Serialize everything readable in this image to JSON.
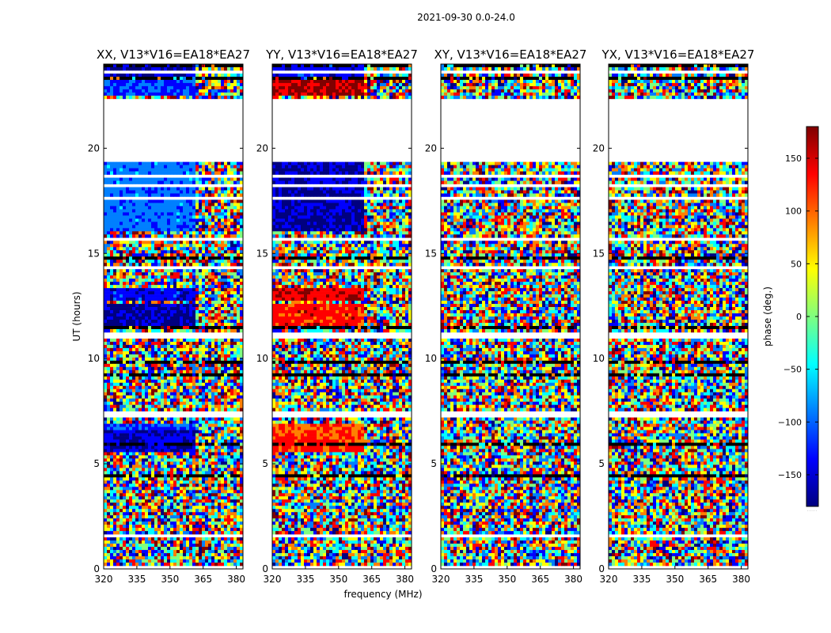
{
  "figure": {
    "suptitle": "2021-09-30 0.0-24.0",
    "xlabel": "frequency (MHz)",
    "ylabel": "UT (hours)",
    "colorbar_label": "phase (deg.)",
    "colorbar_extra": "· · · · ·"
  },
  "chart_data": {
    "type": "heatmap",
    "colormap": "jet",
    "colors": {
      "jet": [
        "#00007f",
        "#0000ff",
        "#007fff",
        "#00ffff",
        "#7fff7f",
        "#ffff00",
        "#ff7f00",
        "#ff0000",
        "#7f0000"
      ],
      "flag": "#ffffff",
      "axis": "#000000"
    },
    "xlim": [
      320,
      383
    ],
    "ylim": [
      0,
      24
    ],
    "xticks": [
      320,
      335,
      350,
      365,
      380
    ],
    "xtick_labels": [
      "320",
      "335",
      "350",
      "365",
      "380"
    ],
    "yticks": [
      0,
      5,
      10,
      15,
      20
    ],
    "ytick_labels": [
      "0",
      "5",
      "10",
      "15",
      "20"
    ],
    "clim": [
      -180,
      180
    ],
    "cticks": [
      150,
      100,
      50,
      0,
      -50,
      -100,
      -150
    ],
    "ctick_labels": [
      "150",
      "100",
      "50",
      "0",
      "−50",
      "−100",
      "−150"
    ],
    "panels": [
      {
        "title": "XX, V13*V16=EA18*EA27"
      },
      {
        "title": "YY, V13*V16=EA18*EA27"
      },
      {
        "title": "XY, V13*V16=EA18*EA27"
      },
      {
        "title": "YX, V13*V16=EA18*EA27"
      }
    ],
    "flagged_ut_ranges": [
      [
        0.05,
        0.15
      ],
      [
        0.55,
        0.62
      ],
      [
        1.55,
        1.62
      ],
      [
        2.78,
        2.85
      ],
      [
        3.3,
        3.35
      ],
      [
        3.85,
        3.9
      ],
      [
        4.45,
        4.5
      ],
      [
        5.5,
        5.55
      ],
      [
        7.2,
        7.45
      ],
      [
        11.0,
        11.25
      ],
      [
        14.3,
        14.35
      ],
      [
        15.6,
        15.75
      ],
      [
        16.2,
        16.25
      ],
      [
        17.1,
        17.15
      ],
      [
        17.6,
        17.65
      ],
      [
        18.2,
        18.25
      ],
      [
        18.65,
        18.7
      ],
      [
        19.3,
        22.4
      ],
      [
        22.9,
        22.95
      ],
      [
        23.6,
        23.65
      ]
    ],
    "dark_ut_rows": [
      [
        4.35,
        4.45
      ],
      [
        4.8,
        4.85
      ],
      [
        5.35,
        5.42
      ],
      [
        5.9,
        5.95
      ],
      [
        8.5,
        8.6
      ],
      [
        9.2,
        9.3
      ],
      [
        9.8,
        9.85
      ],
      [
        11.4,
        11.5
      ],
      [
        12.85,
        12.9
      ],
      [
        13.35,
        13.42
      ],
      [
        14.7,
        14.8
      ],
      [
        15.3,
        15.35
      ],
      [
        15.85,
        15.9
      ],
      [
        22.45,
        22.5
      ],
      [
        23.3,
        23.35
      ],
      [
        23.9,
        23.95
      ]
    ]
  }
}
